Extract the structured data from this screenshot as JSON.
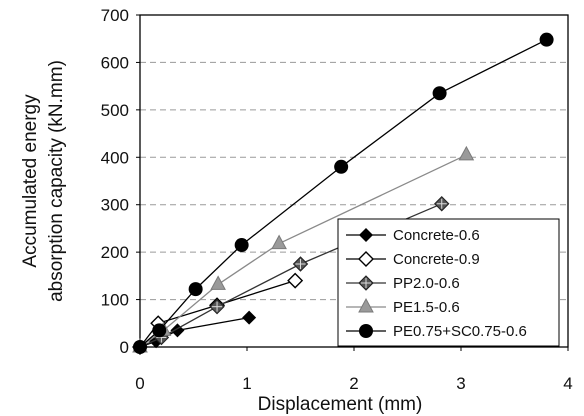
{
  "chart_data": {
    "type": "line",
    "title": "",
    "xlabel": "Displacement (mm)",
    "ylabel_lines": [
      "Accumulated energy",
      "absorption capacity (kN.mm)"
    ],
    "xlim": [
      0,
      4
    ],
    "ylim": [
      0,
      700
    ],
    "xticks": [
      0,
      1,
      2,
      3,
      4
    ],
    "yticks": [
      0,
      100,
      200,
      300,
      400,
      500,
      600,
      700
    ],
    "grid": "horizontal-dashed",
    "legend_position": "bottom-right",
    "series": [
      {
        "name": "Concrete-0.6",
        "marker": "diamond-filled",
        "color": "#000000",
        "x": [
          0.0,
          0.15,
          0.35,
          1.02
        ],
        "y": [
          0,
          12,
          35,
          62
        ]
      },
      {
        "name": "Concrete-0.9",
        "marker": "diamond-open",
        "color": "#000000",
        "x": [
          0.0,
          0.17,
          0.72,
          1.45
        ],
        "y": [
          0,
          50,
          88,
          140
        ]
      },
      {
        "name": "PP2.0-0.6",
        "marker": "diamond-hatched",
        "color": "#333333",
        "x": [
          0.0,
          0.2,
          0.72,
          1.5,
          2.82
        ],
        "y": [
          0,
          20,
          85,
          175,
          302
        ]
      },
      {
        "name": "PE1.5-0.6",
        "marker": "triangle-gray",
        "color": "#8a8a8a",
        "x": [
          0.0,
          0.22,
          0.73,
          1.3,
          3.05
        ],
        "y": [
          0,
          35,
          132,
          218,
          405
        ]
      },
      {
        "name": "PE0.75+SC0.75-0.6",
        "marker": "circle-filled",
        "color": "#000000",
        "x": [
          0.0,
          0.18,
          0.52,
          0.95,
          1.88,
          2.8,
          3.8
        ],
        "y": [
          0,
          35,
          122,
          215,
          380,
          535,
          648
        ]
      }
    ]
  }
}
